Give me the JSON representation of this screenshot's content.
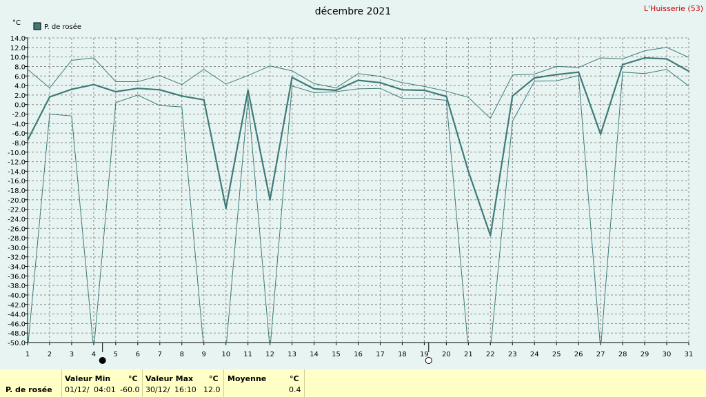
{
  "chart_data": {
    "type": "line",
    "title": "décembre 2021",
    "station": "L'Huisserie (53)",
    "unit": "°C",
    "legend": "P. de rosée",
    "legend_position": "top-left",
    "grid": true,
    "x": [
      1,
      2,
      3,
      4,
      5,
      6,
      7,
      8,
      9,
      10,
      11,
      12,
      13,
      14,
      15,
      16,
      17,
      18,
      19,
      20,
      21,
      22,
      23,
      24,
      25,
      26,
      27,
      28,
      29,
      30,
      31
    ],
    "ylim": [
      -50,
      14
    ],
    "yticks": [
      "14.0",
      "12.0",
      "10.0",
      "8.0",
      "6.0",
      "4.0",
      "2.0",
      "0.0",
      "-2.0",
      "-4.0",
      "-6.0",
      "-8.0",
      "-10.0",
      "-12.0",
      "-14.0",
      "-16.0",
      "-18.0",
      "-20.0",
      "-22.0",
      "-24.0",
      "-26.0",
      "-28.0",
      "-30.0",
      "-32.0",
      "-34.0",
      "-36.0",
      "-38.0",
      "-40.0",
      "-42.0",
      "-44.0",
      "-46.0",
      "-48.0",
      "-50.0"
    ],
    "series": [
      {
        "name": "P. de rosée",
        "role": "avg",
        "values": [
          -7.5,
          1.6,
          3.2,
          4.2,
          2.7,
          3.4,
          3.1,
          1.8,
          1.0,
          -21.8,
          3.0,
          -20.0,
          5.7,
          3.3,
          3.0,
          5.1,
          4.6,
          3.1,
          3.0,
          1.7,
          -14.0,
          -27.5,
          1.8,
          5.6,
          6.3,
          6.8,
          -6.2,
          8.4,
          9.8,
          9.6,
          7.0
        ]
      },
      {
        "role": "max",
        "values": [
          7.4,
          3.5,
          9.3,
          9.8,
          4.8,
          4.8,
          6.1,
          4.2,
          7.4,
          4.3,
          6.1,
          8.1,
          7.1,
          4.4,
          3.5,
          6.5,
          5.9,
          4.6,
          3.8,
          2.8,
          1.5,
          -2.9,
          6.2,
          6.4,
          8.0,
          7.8,
          9.8,
          9.6,
          11.3,
          12.0,
          9.9
        ]
      },
      {
        "role": "min",
        "values": [
          -60.0,
          -2.0,
          -2.4,
          -55.0,
          0.4,
          2.0,
          -0.2,
          -0.5,
          -55.0,
          -55.0,
          1.4,
          -55.0,
          3.9,
          2.5,
          2.7,
          3.3,
          3.4,
          1.3,
          1.3,
          0.9,
          -55.0,
          -55.0,
          -3.5,
          4.9,
          5.0,
          6.1,
          -55.0,
          6.8,
          6.5,
          7.4,
          3.9
        ]
      }
    ],
    "moon_phases": [
      {
        "day": 4.4,
        "label": "new-moon-icon",
        "filled": true
      },
      {
        "day": 19.2,
        "label": "full-moon-icon",
        "filled": false
      }
    ],
    "colors": {
      "avg": "#3d7a78",
      "max": "#3d7a78",
      "min": "#3d7a78",
      "grid": "#8c8c8c",
      "title": "#000000",
      "station": "#cc0000"
    }
  },
  "footer": {
    "series_label": "P. de rosée",
    "min_label": "Valeur Min",
    "min_unit": "°C",
    "min_date": "01/12/",
    "min_time": "04:01",
    "min_value": "-60.0",
    "max_label": "Valeur Max",
    "max_unit": "°C",
    "max_date": "30/12/",
    "max_time": "16:10",
    "max_value": "12.0",
    "avg_label": "Moyenne",
    "avg_unit": "°C",
    "avg_value": "0.4"
  }
}
